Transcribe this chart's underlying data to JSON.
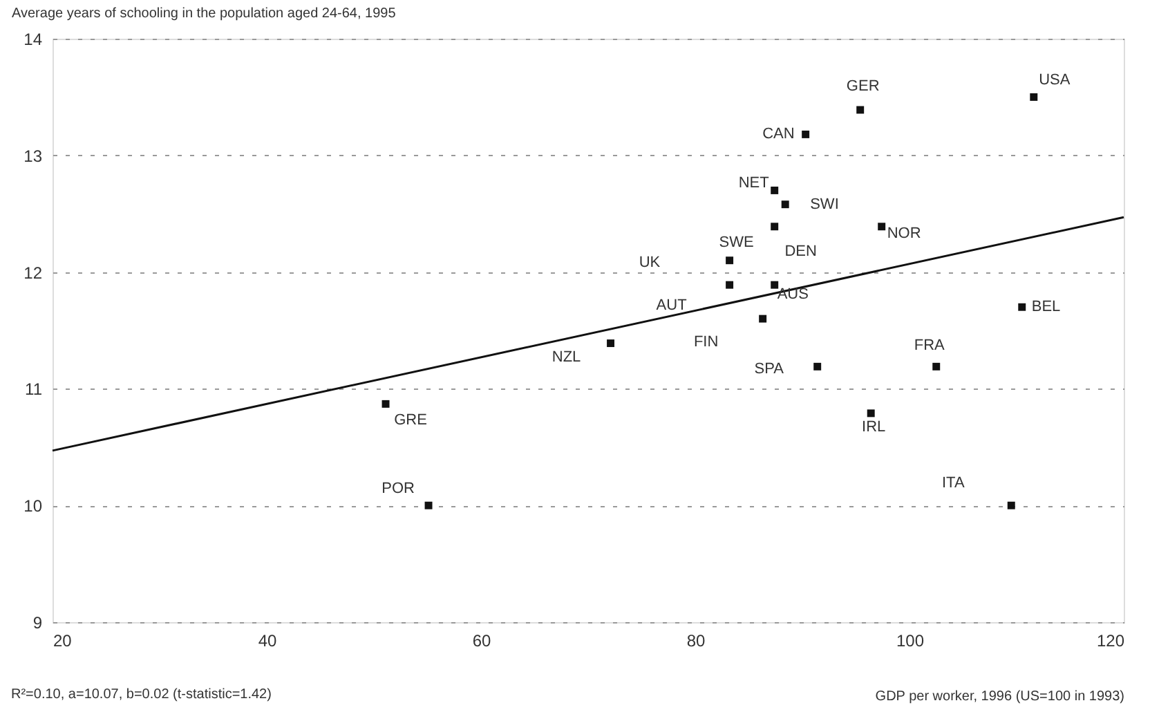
{
  "chart_data": {
    "type": "scatter",
    "marker": "square",
    "ylabel": "Average years of schooling in the population aged 24-64, 1995",
    "xlabel": "GDP per worker, 1996 (US=100 in 1993)",
    "xlim": [
      20,
      120
    ],
    "xticks": [
      20,
      40,
      60,
      80,
      100,
      120
    ],
    "ylim": [
      9,
      14
    ],
    "yticks": [
      9,
      10,
      11,
      12,
      13,
      14
    ],
    "grid": "y",
    "annotations": [
      "R²=0.10, a=10.07, b=0.02 (t-statistic=1.42)",
      "UK"
    ],
    "series": [
      {
        "name": "USA",
        "color": "#111111",
        "x": [
          111.6
        ],
        "values": [
          13.5
        ]
      },
      {
        "name": "GER",
        "color": "#111111",
        "x": [
          95.4
        ],
        "values": [
          13.39
        ]
      },
      {
        "name": "CAN",
        "color": "#111111",
        "x": [
          90.3
        ],
        "values": [
          13.18
        ]
      },
      {
        "name": "NET",
        "color": "#111111",
        "x": [
          87.4
        ],
        "values": [
          12.7
        ]
      },
      {
        "name": "SWI",
        "color": "#111111",
        "x": [
          88.4
        ],
        "values": [
          12.58
        ]
      },
      {
        "name": "DEN",
        "color": "#111111",
        "x": [
          87.4
        ],
        "values": [
          12.39
        ]
      },
      {
        "name": "NOR",
        "color": "#111111",
        "x": [
          97.4
        ],
        "values": [
          12.39
        ]
      },
      {
        "name": "SWE",
        "color": "#111111",
        "x": [
          83.2
        ],
        "values": [
          12.1
        ]
      },
      {
        "name": "AUT",
        "color": "#111111",
        "x": [
          83.2
        ],
        "values": [
          11.89
        ]
      },
      {
        "name": "AUS",
        "color": "#111111",
        "x": [
          87.4
        ],
        "values": [
          11.89
        ]
      },
      {
        "name": "FIN",
        "color": "#111111",
        "x": [
          86.3
        ],
        "values": [
          11.6
        ]
      },
      {
        "name": "BEL",
        "color": "#111111",
        "x": [
          110.5
        ],
        "values": [
          11.7
        ]
      },
      {
        "name": "NZL",
        "color": "#111111",
        "x": [
          72.1
        ],
        "values": [
          11.39
        ]
      },
      {
        "name": "FRA",
        "color": "#111111",
        "x": [
          102.5
        ],
        "values": [
          11.19
        ]
      },
      {
        "name": "SPA",
        "color": "#111111",
        "x": [
          91.4
        ],
        "values": [
          11.19
        ]
      },
      {
        "name": "IRL",
        "color": "#111111",
        "x": [
          96.4
        ],
        "values": [
          10.79
        ]
      },
      {
        "name": "ITA",
        "color": "#111111",
        "x": [
          109.5
        ],
        "values": [
          10.0
        ]
      },
      {
        "name": "GRE",
        "color": "#111111",
        "x": [
          51.1
        ],
        "values": [
          10.87
        ]
      },
      {
        "name": "POR",
        "color": "#111111",
        "x": [
          55.1
        ],
        "values": [
          10.0
        ]
      },
      {
        "type": "line",
        "color": "#111111",
        "line_style": "solid",
        "marker": "none",
        "x": [
          20,
          120
        ],
        "values": [
          10.47,
          12.47
        ]
      }
    ]
  }
}
